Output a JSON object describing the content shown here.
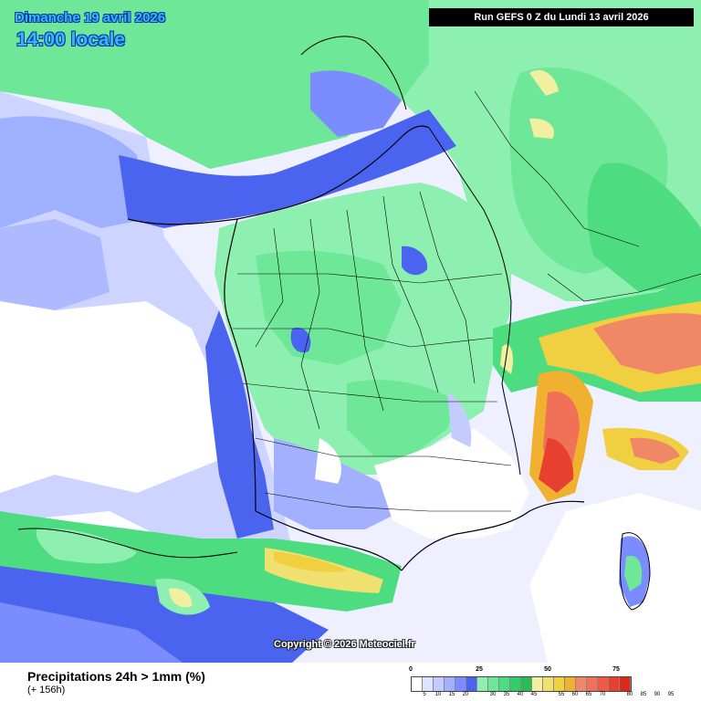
{
  "header": {
    "valid_date": "Dimanche 19 avril 2026",
    "valid_time": "14:00 locale",
    "run_info": "Run GEFS 0 Z du Lundi 13 avril 2026"
  },
  "map": {
    "region": "France",
    "layer": "probability-field",
    "copyright": "Copyright © 2026 Meteociel.fr"
  },
  "footer": {
    "title": "Precipitations 24h > 1mm (%)",
    "lead_time": "(+ 156h)"
  },
  "legend": {
    "major_ticks": [
      "0",
      "25",
      "50",
      "75"
    ],
    "minor_ticks": [
      "5",
      "10",
      "15",
      "20",
      "30",
      "35",
      "40",
      "45",
      "55",
      "60",
      "65",
      "70",
      "80",
      "85",
      "90",
      "95"
    ],
    "colors": [
      "#ffffff",
      "#dfe3ff",
      "#c4ccff",
      "#a3afff",
      "#7a8cff",
      "#4a64f0",
      "#8ef0b0",
      "#6ee898",
      "#4edc80",
      "#36cc6a",
      "#28bb58",
      "#f0f0a0",
      "#f0e070",
      "#f0d040",
      "#f0b030",
      "#f08868",
      "#f07058",
      "#f05848",
      "#e84030",
      "#e02818"
    ]
  }
}
